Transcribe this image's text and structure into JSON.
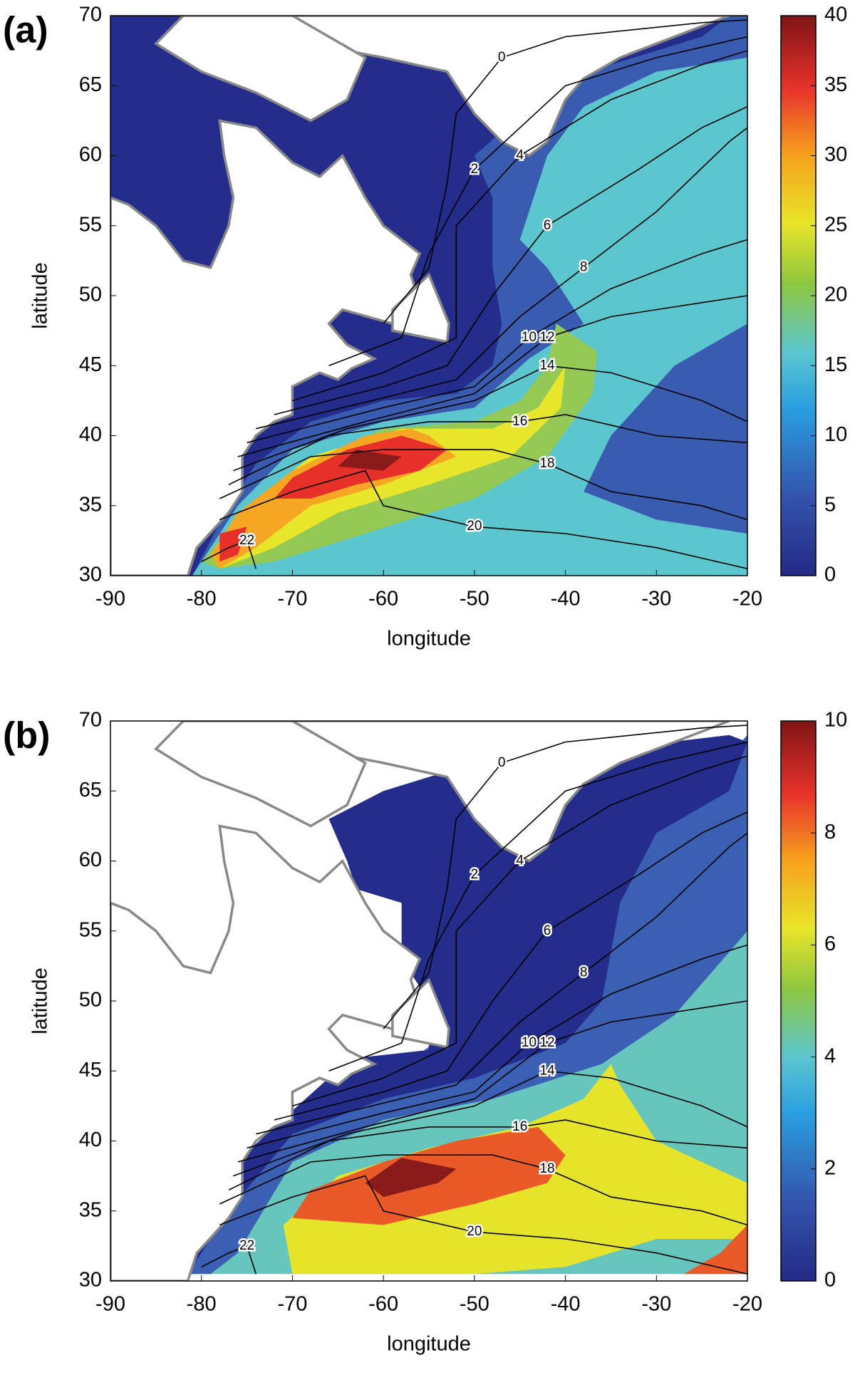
{
  "chart_data": [
    {
      "type": "contour",
      "panel_label": "(a)",
      "xlabel": "longitude",
      "ylabel": "latitude",
      "xlim": [
        -90,
        -20
      ],
      "xticks": [
        -90,
        -80,
        -70,
        -60,
        -50,
        -40,
        -30,
        -20
      ],
      "ylim": [
        30,
        70
      ],
      "yticks": [
        30,
        35,
        40,
        45,
        50,
        55,
        60,
        65,
        70
      ],
      "colormap": "jet",
      "clim": [
        0,
        40
      ],
      "cticks": [
        0,
        5,
        10,
        15,
        20,
        25,
        30,
        35,
        40
      ],
      "contour_levels": [
        0,
        2,
        4,
        6,
        8,
        10,
        12,
        14,
        16,
        18,
        20,
        22
      ]
    },
    {
      "type": "contour",
      "panel_label": "(b)",
      "xlabel": "longitude",
      "ylabel": "latitude",
      "xlim": [
        -90,
        -20
      ],
      "xticks": [
        -90,
        -80,
        -70,
        -60,
        -50,
        -40,
        -30,
        -20
      ],
      "ylim": [
        30,
        70
      ],
      "yticks": [
        30,
        35,
        40,
        45,
        50,
        55,
        60,
        65,
        70
      ],
      "colormap": "jet",
      "clim": [
        0,
        10
      ],
      "cticks": [
        0,
        2,
        4,
        6,
        8,
        10
      ],
      "contour_levels": [
        0,
        2,
        4,
        6,
        8,
        10,
        12,
        14,
        16,
        18,
        20,
        22
      ]
    }
  ]
}
